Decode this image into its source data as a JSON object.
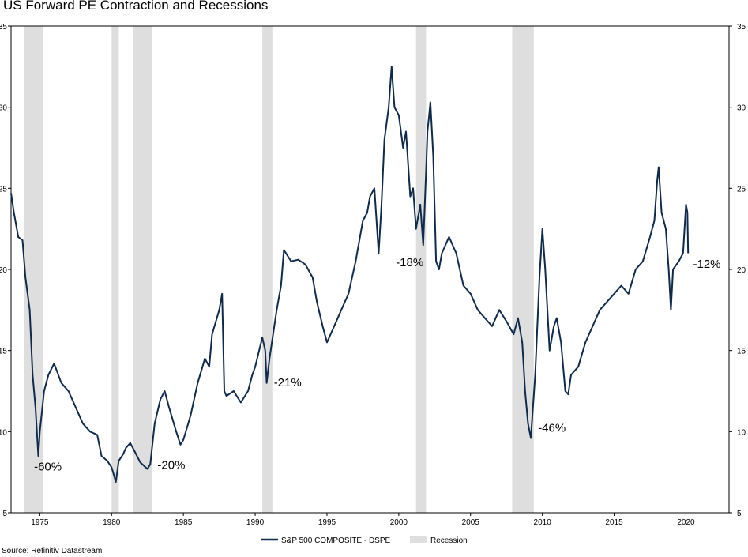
{
  "chart_data": {
    "type": "line",
    "title": "US Forward PE Contraction and Recessions",
    "xlim": [
      1973.0,
      2023.0
    ],
    "ylim": [
      5,
      35
    ],
    "x_ticks": [
      1975,
      1980,
      1985,
      1990,
      1995,
      2000,
      2005,
      2010,
      2015,
      2020
    ],
    "y_ticks": [
      5,
      10,
      15,
      20,
      25,
      30,
      35
    ],
    "grid": false,
    "legend_position": "bottom-center",
    "series": [
      {
        "name": "S&P 500 COMPOSITE - DSPE",
        "color": "#0f2a4a",
        "points": [
          [
            1973.0,
            24.7
          ],
          [
            1973.2,
            23.5
          ],
          [
            1973.5,
            22.0
          ],
          [
            1973.8,
            21.8
          ],
          [
            1974.0,
            19.5
          ],
          [
            1974.3,
            17.5
          ],
          [
            1974.5,
            13.5
          ],
          [
            1974.7,
            11.5
          ],
          [
            1974.9,
            8.5
          ],
          [
            1975.0,
            10.0
          ],
          [
            1975.3,
            12.5
          ],
          [
            1975.6,
            13.5
          ],
          [
            1976.0,
            14.2
          ],
          [
            1976.5,
            13.0
          ],
          [
            1977.0,
            12.5
          ],
          [
            1977.5,
            11.5
          ],
          [
            1978.0,
            10.5
          ],
          [
            1978.5,
            10.0
          ],
          [
            1979.0,
            9.8
          ],
          [
            1979.3,
            8.5
          ],
          [
            1979.7,
            8.2
          ],
          [
            1980.0,
            7.8
          ],
          [
            1980.2,
            7.2
          ],
          [
            1980.3,
            6.9
          ],
          [
            1980.5,
            8.2
          ],
          [
            1980.8,
            8.6
          ],
          [
            1981.0,
            9.0
          ],
          [
            1981.3,
            9.3
          ],
          [
            1981.6,
            8.8
          ],
          [
            1982.0,
            8.1
          ],
          [
            1982.5,
            7.7
          ],
          [
            1982.7,
            8.0
          ],
          [
            1983.0,
            10.5
          ],
          [
            1983.4,
            12.0
          ],
          [
            1983.7,
            12.5
          ],
          [
            1984.0,
            11.5
          ],
          [
            1984.5,
            10.0
          ],
          [
            1984.8,
            9.2
          ],
          [
            1985.0,
            9.5
          ],
          [
            1985.5,
            11.0
          ],
          [
            1986.0,
            13.0
          ],
          [
            1986.5,
            14.5
          ],
          [
            1986.8,
            14.0
          ],
          [
            1987.0,
            16.0
          ],
          [
            1987.5,
            17.5
          ],
          [
            1987.7,
            18.5
          ],
          [
            1987.85,
            12.5
          ],
          [
            1988.0,
            12.2
          ],
          [
            1988.5,
            12.5
          ],
          [
            1989.0,
            11.8
          ],
          [
            1989.5,
            12.5
          ],
          [
            1989.8,
            13.5
          ],
          [
            1990.0,
            14.0
          ],
          [
            1990.5,
            15.8
          ],
          [
            1990.7,
            15.0
          ],
          [
            1990.8,
            13.0
          ],
          [
            1991.0,
            14.5
          ],
          [
            1991.5,
            17.5
          ],
          [
            1991.8,
            19.0
          ],
          [
            1992.0,
            21.2
          ],
          [
            1992.5,
            20.5
          ],
          [
            1993.0,
            20.6
          ],
          [
            1993.5,
            20.3
          ],
          [
            1994.0,
            19.5
          ],
          [
            1994.3,
            18.0
          ],
          [
            1994.7,
            16.5
          ],
          [
            1995.0,
            15.5
          ],
          [
            1995.5,
            16.5
          ],
          [
            1996.0,
            17.5
          ],
          [
            1996.5,
            18.5
          ],
          [
            1997.0,
            20.5
          ],
          [
            1997.5,
            23.0
          ],
          [
            1997.8,
            23.5
          ],
          [
            1998.0,
            24.5
          ],
          [
            1998.3,
            25.0
          ],
          [
            1998.6,
            21.0
          ],
          [
            1998.8,
            24.0
          ],
          [
            1999.0,
            28.0
          ],
          [
            1999.3,
            30.0
          ],
          [
            1999.5,
            32.5
          ],
          [
            1999.7,
            30.0
          ],
          [
            2000.0,
            29.5
          ],
          [
            2000.3,
            27.5
          ],
          [
            2000.5,
            28.5
          ],
          [
            2000.8,
            24.5
          ],
          [
            2001.0,
            25.0
          ],
          [
            2001.2,
            22.5
          ],
          [
            2001.5,
            24.0
          ],
          [
            2001.7,
            21.5
          ],
          [
            2001.9,
            26.0
          ],
          [
            2002.0,
            28.5
          ],
          [
            2002.2,
            30.3
          ],
          [
            2002.4,
            27.0
          ],
          [
            2002.6,
            20.5
          ],
          [
            2002.8,
            20.0
          ],
          [
            2003.0,
            21.0
          ],
          [
            2003.5,
            22.0
          ],
          [
            2004.0,
            21.0
          ],
          [
            2004.5,
            19.0
          ],
          [
            2005.0,
            18.5
          ],
          [
            2005.5,
            17.5
          ],
          [
            2006.0,
            17.0
          ],
          [
            2006.5,
            16.5
          ],
          [
            2007.0,
            17.5
          ],
          [
            2007.5,
            16.8
          ],
          [
            2008.0,
            16.0
          ],
          [
            2008.3,
            17.0
          ],
          [
            2008.6,
            15.5
          ],
          [
            2008.8,
            12.5
          ],
          [
            2009.0,
            10.5
          ],
          [
            2009.2,
            9.6
          ],
          [
            2009.5,
            13.5
          ],
          [
            2009.8,
            19.5
          ],
          [
            2010.0,
            22.5
          ],
          [
            2010.2,
            20.0
          ],
          [
            2010.5,
            15.0
          ],
          [
            2010.8,
            16.5
          ],
          [
            2011.0,
            17.0
          ],
          [
            2011.3,
            15.5
          ],
          [
            2011.6,
            12.5
          ],
          [
            2011.8,
            12.3
          ],
          [
            2012.0,
            13.5
          ],
          [
            2012.5,
            14.0
          ],
          [
            2013.0,
            15.5
          ],
          [
            2013.5,
            16.5
          ],
          [
            2014.0,
            17.5
          ],
          [
            2014.5,
            18.0
          ],
          [
            2015.0,
            18.5
          ],
          [
            2015.5,
            19.0
          ],
          [
            2016.0,
            18.5
          ],
          [
            2016.5,
            20.0
          ],
          [
            2017.0,
            20.5
          ],
          [
            2017.5,
            22.0
          ],
          [
            2017.8,
            23.0
          ],
          [
            2018.0,
            25.5
          ],
          [
            2018.1,
            26.3
          ],
          [
            2018.3,
            23.5
          ],
          [
            2018.6,
            22.5
          ],
          [
            2018.8,
            20.0
          ],
          [
            2018.95,
            17.5
          ],
          [
            2019.1,
            20.0
          ],
          [
            2019.5,
            20.5
          ],
          [
            2019.8,
            21.0
          ],
          [
            2020.0,
            24.0
          ],
          [
            2020.1,
            23.5
          ],
          [
            2020.15,
            21.0
          ]
        ]
      },
      {
        "name": "Recession",
        "color": "#dedede",
        "ranges": [
          [
            1973.9,
            1975.2
          ],
          [
            1980.0,
            1980.5
          ],
          [
            1981.5,
            1982.85
          ],
          [
            1990.5,
            1991.2
          ],
          [
            2001.2,
            2001.9
          ],
          [
            2007.9,
            2009.4
          ]
        ]
      }
    ],
    "annotations": [
      {
        "text": "-60%",
        "x": 1974.6,
        "y": 7.6
      },
      {
        "text": "-20%",
        "x": 1983.2,
        "y": 7.7
      },
      {
        "text": "-21%",
        "x": 1991.3,
        "y": 12.8
      },
      {
        "text": "-18%",
        "x": 1999.8,
        "y": 20.2
      },
      {
        "text": "-46%",
        "x": 2009.7,
        "y": 10.0
      },
      {
        "text": "-12%",
        "x": 2020.5,
        "y": 20.1
      }
    ]
  },
  "source": "Source: Refinitiv Datastream"
}
